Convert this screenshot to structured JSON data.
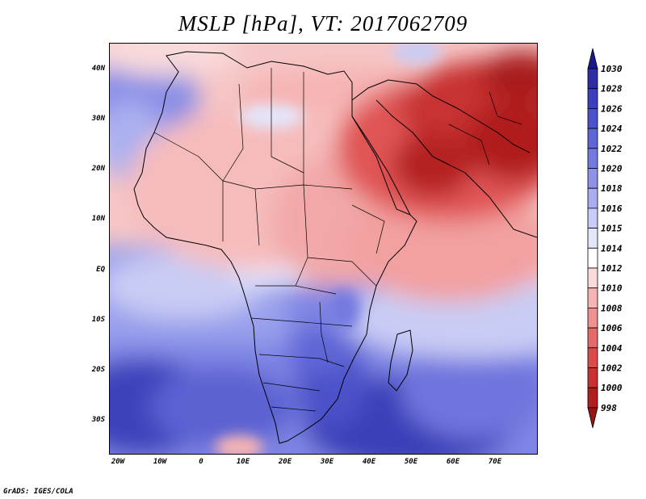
{
  "title": "MSLP [hPa], VT: 2017062709",
  "credit": "GrADS: IGES/COLA",
  "lat_labels": [
    "40N",
    "30N",
    "20N",
    "10N",
    "EQ",
    "10S",
    "20S",
    "30S"
  ],
  "lon_labels": [
    "20W",
    "10W",
    "0",
    "10E",
    "20E",
    "30E",
    "40E",
    "50E",
    "60E",
    "70E"
  ],
  "colorbar": {
    "levels": [
      "1030",
      "1028",
      "1026",
      "1024",
      "1022",
      "1020",
      "1018",
      "1016",
      "1015",
      "1014",
      "1012",
      "1010",
      "1008",
      "1006",
      "1004",
      "1002",
      "1000",
      "998"
    ],
    "colors": [
      "#1b1a8c",
      "#2d2ea6",
      "#3c3fbd",
      "#4c51cc",
      "#5f66d6",
      "#7479e0",
      "#8d92e8",
      "#aaaeee",
      "#c9ccf4",
      "#e4e6fa",
      "#ffffff",
      "#fbdada",
      "#f6b4b4",
      "#f09090",
      "#e56a6a",
      "#dc4b4b",
      "#c83232",
      "#b01f1f",
      "#951414"
    ]
  }
}
